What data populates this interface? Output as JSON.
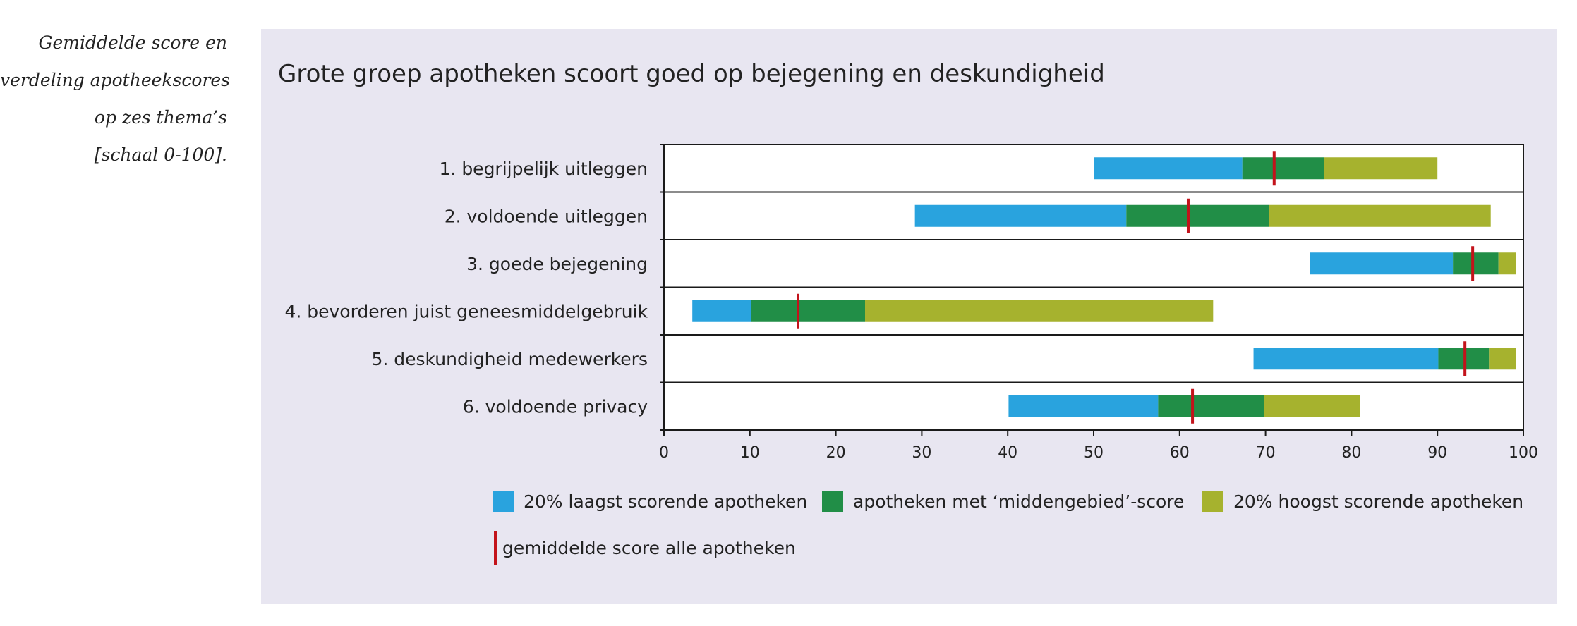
{
  "caption": {
    "lines": [
      "Gemiddelde score en",
      "verdeling apotheekscores",
      "op zes thema’s",
      "[schaal 0-100]."
    ]
  },
  "chart_data": {
    "type": "bar",
    "title": "Grote groep apotheken scoort goed op bejegening en deskundigheid",
    "categories": [
      "1. begrijpelijk uitleggen",
      "2. voldoende uitleggen",
      "3. goede bejegening",
      "4. bevorderen juist geneesmiddelgebruik",
      "5. deskundigheid medewerkers",
      "6. voldoende privacy"
    ],
    "segments": [
      {
        "name": "20% laagst scorende apotheken",
        "color": "#29a3de",
        "ranges": [
          [
            50,
            67.3
          ],
          [
            29.2,
            53.8
          ],
          [
            75.2,
            91.8
          ],
          [
            3.3,
            10.1
          ],
          [
            68.6,
            90.1
          ],
          [
            40.1,
            57.5
          ]
        ]
      },
      {
        "name": "apotheken met ‘middengebied’-score",
        "color": "#218e47",
        "ranges": [
          [
            67.3,
            76.8
          ],
          [
            53.8,
            70.4
          ],
          [
            91.8,
            97.1
          ],
          [
            10.1,
            23.4
          ],
          [
            90.1,
            96.0
          ],
          [
            57.5,
            69.8
          ]
        ]
      },
      {
        "name": "20% hoogst scorende apotheken",
        "color": "#a6b22e",
        "ranges": [
          [
            76.8,
            90.0
          ],
          [
            70.4,
            96.2
          ],
          [
            97.1,
            99.1
          ],
          [
            23.4,
            63.9
          ],
          [
            96.0,
            99.1
          ],
          [
            69.8,
            81.0
          ]
        ]
      }
    ],
    "mean": {
      "name": "gemiddelde score alle apotheken",
      "color": "#c3131b",
      "values": [
        71.0,
        61.0,
        94.1,
        15.6,
        93.2,
        61.5
      ]
    },
    "xlim": [
      0,
      100
    ],
    "xticks": [
      "0",
      "10",
      "20",
      "30",
      "40",
      "50",
      "60",
      "70",
      "80",
      "90",
      "100"
    ],
    "xlabel": "",
    "ylabel": "",
    "legend_position": "bottom"
  }
}
